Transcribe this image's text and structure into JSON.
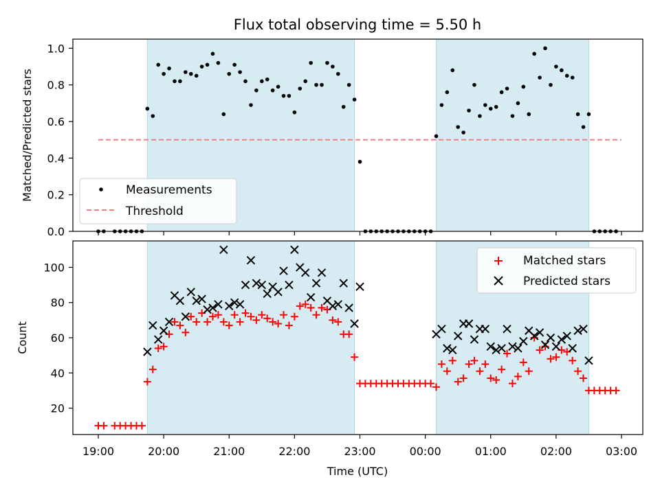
{
  "title": "Flux total observing time = 5.50 h",
  "chart_data": [
    {
      "type": "scatter",
      "ylabel": "Matched/Predicted stars",
      "ylim": [
        0,
        1.05
      ],
      "yticks": [
        "0.0",
        "0.2",
        "0.4",
        "0.6",
        "0.8",
        "1.0"
      ],
      "shaded_intervals": [
        [
          "19:45",
          "22:55"
        ],
        [
          "00:10",
          "02:30"
        ]
      ],
      "threshold": {
        "name": "Threshold",
        "value": 0.5,
        "x_range": [
          "19:00",
          "22:55",
          "03:00"
        ],
        "color": "#f08080"
      },
      "legend": {
        "placement": "lower-left",
        "entries": [
          "Measurements",
          "Threshold"
        ]
      },
      "series": [
        {
          "name": "Measurements",
          "color": "#000000",
          "points": [
            [
              "19:00",
              0
            ],
            [
              "19:05",
              0
            ],
            [
              "19:15",
              0
            ],
            [
              "19:20",
              0
            ],
            [
              "19:25",
              0
            ],
            [
              "19:30",
              0
            ],
            [
              "19:35",
              0
            ],
            [
              "19:40",
              0
            ],
            [
              "19:45",
              0.67
            ],
            [
              "19:50",
              0.63
            ],
            [
              "19:55",
              0.91
            ],
            [
              "20:00",
              0.86
            ],
            [
              "20:05",
              0.89
            ],
            [
              "20:10",
              0.82
            ],
            [
              "20:15",
              0.82
            ],
            [
              "20:20",
              0.87
            ],
            [
              "20:25",
              0.86
            ],
            [
              "20:30",
              0.85
            ],
            [
              "20:35",
              0.9
            ],
            [
              "20:40",
              0.91
            ],
            [
              "20:45",
              0.97
            ],
            [
              "20:50",
              0.92
            ],
            [
              "20:55",
              0.64
            ],
            [
              "21:00",
              0.86
            ],
            [
              "21:05",
              0.91
            ],
            [
              "21:10",
              0.87
            ],
            [
              "21:15",
              0.82
            ],
            [
              "21:20",
              0.69
            ],
            [
              "21:25",
              0.77
            ],
            [
              "21:30",
              0.82
            ],
            [
              "21:35",
              0.83
            ],
            [
              "21:40",
              0.77
            ],
            [
              "21:45",
              0.79
            ],
            [
              "21:50",
              0.74
            ],
            [
              "21:55",
              0.74
            ],
            [
              "22:00",
              0.65
            ],
            [
              "22:05",
              0.78
            ],
            [
              "22:10",
              0.82
            ],
            [
              "22:15",
              0.92
            ],
            [
              "22:20",
              0.8
            ],
            [
              "22:25",
              0.8
            ],
            [
              "22:30",
              0.92
            ],
            [
              "22:35",
              0.9
            ],
            [
              "22:40",
              0.86
            ],
            [
              "22:45",
              0.68
            ],
            [
              "22:50",
              0.8
            ],
            [
              "22:55",
              0.72
            ],
            [
              "23:00",
              0.38
            ],
            [
              "23:05",
              0
            ],
            [
              "23:10",
              0
            ],
            [
              "23:15",
              0
            ],
            [
              "23:20",
              0
            ],
            [
              "23:25",
              0
            ],
            [
              "23:30",
              0
            ],
            [
              "23:35",
              0
            ],
            [
              "23:40",
              0
            ],
            [
              "23:45",
              0
            ],
            [
              "23:50",
              0
            ],
            [
              "23:55",
              0
            ],
            [
              "00:00",
              0
            ],
            [
              "00:05",
              0
            ],
            [
              "00:10",
              0.52
            ],
            [
              "00:15",
              0.69
            ],
            [
              "00:20",
              0.76
            ],
            [
              "00:25",
              0.88
            ],
            [
              "00:30",
              0.57
            ],
            [
              "00:35",
              0.54
            ],
            [
              "00:40",
              0.66
            ],
            [
              "00:45",
              0.8
            ],
            [
              "00:50",
              0.63
            ],
            [
              "00:55",
              0.69
            ],
            [
              "01:00",
              0.67
            ],
            [
              "01:05",
              0.68
            ],
            [
              "01:10",
              0.76
            ],
            [
              "01:15",
              0.78
            ],
            [
              "01:20",
              0.63
            ],
            [
              "01:25",
              0.7
            ],
            [
              "01:30",
              0.79
            ],
            [
              "01:35",
              0.64
            ],
            [
              "01:40",
              0.97
            ],
            [
              "01:45",
              0.84
            ],
            [
              "01:50",
              1.0
            ],
            [
              "01:55",
              0.8
            ],
            [
              "02:00",
              0.9
            ],
            [
              "02:05",
              0.88
            ],
            [
              "02:10",
              0.85
            ],
            [
              "02:15",
              0.84
            ],
            [
              "02:20",
              0.64
            ],
            [
              "02:25",
              0.57
            ],
            [
              "02:30",
              0.64
            ],
            [
              "02:35",
              0
            ],
            [
              "02:40",
              0
            ],
            [
              "02:45",
              0
            ],
            [
              "02:50",
              0
            ],
            [
              "02:55",
              0
            ]
          ]
        }
      ]
    },
    {
      "type": "scatter",
      "xlabel": "Time (UTC)",
      "ylabel": "Count",
      "ylim": [
        5,
        115
      ],
      "yticks": [
        "20",
        "40",
        "60",
        "80",
        "100"
      ],
      "xticks": [
        "19:00",
        "20:00",
        "21:00",
        "22:00",
        "23:00",
        "00:00",
        "01:00",
        "02:00",
        "03:00"
      ],
      "xlim": [
        "18:45",
        "03:10"
      ],
      "legend": {
        "placement": "upper-right",
        "entries": [
          "Matched stars",
          "Predicted stars"
        ]
      },
      "series": [
        {
          "name": "Matched stars",
          "color": "#ff0000",
          "marker": "plus",
          "points": [
            [
              "19:00",
              10
            ],
            [
              "19:05",
              10
            ],
            [
              "19:15",
              10
            ],
            [
              "19:20",
              10
            ],
            [
              "19:25",
              10
            ],
            [
              "19:30",
              10
            ],
            [
              "19:35",
              10
            ],
            [
              "19:40",
              10
            ],
            [
              "19:45",
              35
            ],
            [
              "19:50",
              42
            ],
            [
              "19:55",
              54
            ],
            [
              "20:00",
              55
            ],
            [
              "20:05",
              62
            ],
            [
              "20:10",
              69
            ],
            [
              "20:15",
              67
            ],
            [
              "20:20",
              63
            ],
            [
              "20:25",
              72
            ],
            [
              "20:30",
              69
            ],
            [
              "20:35",
              74
            ],
            [
              "20:40",
              69
            ],
            [
              "20:45",
              72
            ],
            [
              "20:50",
              73
            ],
            [
              "20:55",
              69
            ],
            [
              "21:00",
              67
            ],
            [
              "21:05",
              73
            ],
            [
              "21:10",
              69
            ],
            [
              "21:15",
              74
            ],
            [
              "21:20",
              72
            ],
            [
              "21:25",
              70
            ],
            [
              "21:30",
              73
            ],
            [
              "21:35",
              71
            ],
            [
              "21:40",
              69
            ],
            [
              "21:45",
              68
            ],
            [
              "21:50",
              73
            ],
            [
              "21:55",
              67
            ],
            [
              "22:00",
              72
            ],
            [
              "22:05",
              78
            ],
            [
              "22:10",
              79
            ],
            [
              "22:15",
              77
            ],
            [
              "22:20",
              73
            ],
            [
              "22:25",
              77
            ],
            [
              "22:30",
              76
            ],
            [
              "22:35",
              70
            ],
            [
              "22:40",
              69
            ],
            [
              "22:45",
              62
            ],
            [
              "22:50",
              62
            ],
            [
              "22:55",
              49
            ],
            [
              "23:00",
              34
            ],
            [
              "23:05",
              34
            ],
            [
              "23:10",
              34
            ],
            [
              "23:15",
              34
            ],
            [
              "23:20",
              34
            ],
            [
              "23:25",
              34
            ],
            [
              "23:30",
              34
            ],
            [
              "23:35",
              34
            ],
            [
              "23:40",
              34
            ],
            [
              "23:45",
              34
            ],
            [
              "23:50",
              34
            ],
            [
              "23:55",
              34
            ],
            [
              "00:00",
              34
            ],
            [
              "00:05",
              34
            ],
            [
              "00:10",
              32
            ],
            [
              "00:15",
              45
            ],
            [
              "00:20",
              41
            ],
            [
              "00:25",
              47
            ],
            [
              "00:30",
              35
            ],
            [
              "00:35",
              37
            ],
            [
              "00:40",
              45
            ],
            [
              "00:45",
              47
            ],
            [
              "00:50",
              41
            ],
            [
              "00:55",
              45
            ],
            [
              "01:00",
              37
            ],
            [
              "01:05",
              36
            ],
            [
              "01:10",
              42
            ],
            [
              "01:15",
              51
            ],
            [
              "01:20",
              34
            ],
            [
              "01:25",
              38
            ],
            [
              "01:30",
              46
            ],
            [
              "01:35",
              41
            ],
            [
              "01:40",
              60
            ],
            [
              "01:45",
              53
            ],
            [
              "01:50",
              55
            ],
            [
              "01:55",
              48
            ],
            [
              "02:00",
              49
            ],
            [
              "02:05",
              53
            ],
            [
              "02:10",
              52
            ],
            [
              "02:15",
              47
            ],
            [
              "02:20",
              41
            ],
            [
              "02:25",
              37
            ],
            [
              "02:30",
              30
            ],
            [
              "02:35",
              30
            ],
            [
              "02:40",
              30
            ],
            [
              "02:45",
              30
            ],
            [
              "02:50",
              30
            ],
            [
              "02:55",
              30
            ]
          ]
        },
        {
          "name": "Predicted stars",
          "color": "#000000",
          "marker": "x",
          "points": [
            [
              "19:45",
              52
            ],
            [
              "19:50",
              67
            ],
            [
              "19:55",
              59
            ],
            [
              "20:00",
              64
            ],
            [
              "20:05",
              69
            ],
            [
              "20:10",
              84
            ],
            [
              "20:15",
              81
            ],
            [
              "20:20",
              72
            ],
            [
              "20:25",
              86
            ],
            [
              "20:30",
              81
            ],
            [
              "20:35",
              82
            ],
            [
              "20:40",
              76
            ],
            [
              "20:45",
              77
            ],
            [
              "20:50",
              79
            ],
            [
              "20:55",
              110
            ],
            [
              "21:00",
              78
            ],
            [
              "21:05",
              80
            ],
            [
              "21:10",
              79
            ],
            [
              "21:15",
              90
            ],
            [
              "21:20",
              104
            ],
            [
              "21:25",
              91
            ],
            [
              "21:30",
              90
            ],
            [
              "21:35",
              85
            ],
            [
              "21:40",
              89
            ],
            [
              "21:45",
              86
            ],
            [
              "21:50",
              98
            ],
            [
              "21:55",
              90
            ],
            [
              "22:00",
              110
            ],
            [
              "22:05",
              100
            ],
            [
              "22:10",
              97
            ],
            [
              "22:15",
              83
            ],
            [
              "22:20",
              91
            ],
            [
              "22:25",
              97
            ],
            [
              "22:30",
              81
            ],
            [
              "22:35",
              78
            ],
            [
              "22:40",
              79
            ],
            [
              "22:45",
              91
            ],
            [
              "22:50",
              77
            ],
            [
              "22:55",
              68
            ],
            [
              "23:00",
              89
            ],
            [
              "00:10",
              62
            ],
            [
              "00:15",
              65
            ],
            [
              "00:20",
              54
            ],
            [
              "00:25",
              53
            ],
            [
              "00:30",
              61
            ],
            [
              "00:35",
              68
            ],
            [
              "00:40",
              68
            ],
            [
              "00:45",
              59
            ],
            [
              "00:50",
              65
            ],
            [
              "00:55",
              65
            ],
            [
              "01:00",
              55
            ],
            [
              "01:05",
              53
            ],
            [
              "01:10",
              54
            ],
            [
              "01:15",
              65
            ],
            [
              "01:20",
              55
            ],
            [
              "01:25",
              54
            ],
            [
              "01:30",
              58
            ],
            [
              "01:35",
              64
            ],
            [
              "01:40",
              61
            ],
            [
              "01:45",
              63
            ],
            [
              "01:50",
              56
            ],
            [
              "01:55",
              60
            ],
            [
              "02:00",
              55
            ],
            [
              "02:05",
              59
            ],
            [
              "02:10",
              61
            ],
            [
              "02:15",
              54
            ],
            [
              "02:20",
              64
            ],
            [
              "02:25",
              65
            ],
            [
              "02:30",
              47
            ]
          ]
        }
      ]
    }
  ]
}
